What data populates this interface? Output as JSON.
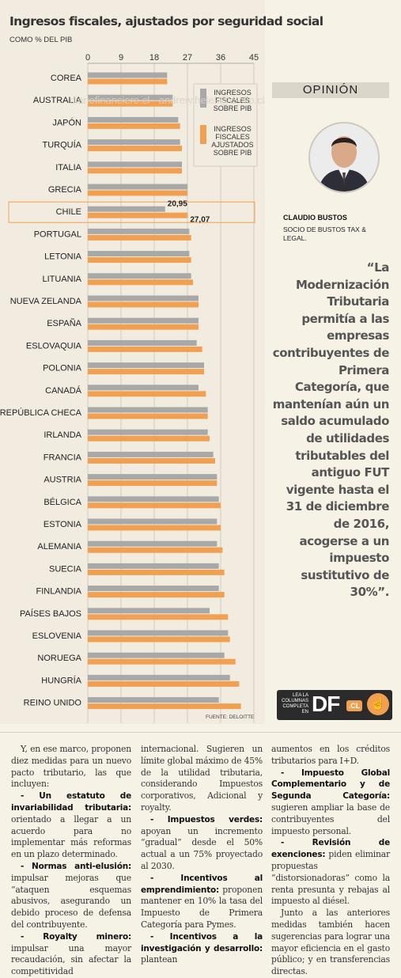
{
  "chart_data": {
    "type": "bar",
    "orientation": "horizontal",
    "title": "Ingresos fiscales, ajustados por seguridad social",
    "subtitle": "COMO % DEL PIB",
    "source": "FUENTE: DELOITTE",
    "xlim": [
      0,
      45
    ],
    "x_ticks": [
      "0",
      "9",
      "18",
      "27",
      "36",
      "45"
    ],
    "grid": true,
    "legend_position": "top-right",
    "categories": [
      "COREA",
      "AUSTRALIA",
      "JAPÓN",
      "TURQUÍA",
      "ITALIA",
      "GRECIA",
      "CHILE",
      "PORTUGAL",
      "LETONIA",
      "LITUANIA",
      "NUEVA ZELANDA",
      "ESPAÑA",
      "ESLOVAQUIA",
      "POLONIA",
      "CANADÁ",
      "REPÚBLICA CHECA",
      "IRLANDA",
      "FRANCIA",
      "AUSTRIA",
      "BÉLGICA",
      "ESTONIA",
      "ALEMANIA",
      "SUECIA",
      "FINLANDIA",
      "PAÍSES BAJOS",
      "ESLOVENIA",
      "NORUEGA",
      "HUNGRÍA",
      "REINO UNIDO"
    ],
    "highlight_category": "CHILE",
    "series": [
      {
        "name": "INGRESOS FISCALES SOBRE PIB",
        "color": "#a8a8a8",
        "values": [
          21.5,
          23,
          24.5,
          25,
          25.5,
          27,
          20.95,
          27.5,
          27.5,
          28,
          30,
          30,
          29.5,
          31.5,
          30,
          32.5,
          32.5,
          34,
          35,
          35.5,
          35,
          35,
          35.5,
          35.5,
          33,
          38,
          37,
          38.5,
          35.5
        ]
      },
      {
        "name": "INGRESOS FISCALES AJUSTADOS SOBRE PIB",
        "color": "#f0a050",
        "values": [
          21.5,
          23,
          25,
          25.5,
          25.5,
          27,
          27.07,
          28,
          28,
          28.5,
          30,
          30,
          31,
          31.5,
          32,
          32.5,
          33,
          34.5,
          35,
          36,
          36,
          36.5,
          37,
          37,
          38,
          38.5,
          40,
          41,
          41.5
        ]
      }
    ],
    "data_labels": [
      {
        "category": "CHILE",
        "series": 0,
        "text": "20,95"
      },
      {
        "category": "CHILE",
        "series": 1,
        "text": "27,07"
      }
    ]
  },
  "watermark": "diariofinanciero.cl - andrew.helek@e-clip.cl",
  "opinion": {
    "header": "OPINIÓN",
    "author_name": "CLAUDIO BUSTOS",
    "author_role": "SOCIO DE BUSTOS TAX & LEGAL.",
    "quote": "“La Modernización Tributaria permitía a las empresas contribuyentes de Primera Categoría, que mantenían aún un saldo acumulado de utilidades tributables del antiguo FUT vigente hasta el 31 de diciembre de 2016, acogerse a un impuesto sustitutivo de 30%”.",
    "badge_small": "LEA LA COLUMNAS COMPLETA EN",
    "badge_logo": "DF",
    "badge_cl": ".CL",
    "badge_icon": "hand-pointer-icon"
  },
  "article": {
    "col1": {
      "p1": "Y, en ese marco, proponen diez medidas para un nuevo pacto tributario, las que incluyen:",
      "b2": "- Un estatuto de invariabilidad tributaria:",
      "t2": " orientado a llegar a un acuerdo para no implementar más reformas en un plazo determinado.",
      "b3": "- Normas anti-elusión:",
      "t3": " impulsar mejoras que “ataquen esquemas abusivos, asegurando un debido proceso de defensa del contribuyente.",
      "b4": "- Royalty minero:",
      "t4": " impulsar una mayor recaudación, sin afectar la competitividad"
    },
    "col2": {
      "t1": "internacional. Sugieren un límite global máximo de 45% de la utilidad tributaria, considerando Impuestos corporativos, Adicional y royalty.",
      "b2": "- Impuestos verdes:",
      "t2": " apoyan un incremento “gradual” desde el 50% actual a un 75% proyectado al 2030.",
      "b3": "- Incentivos al emprendimiento:",
      "t3": " proponen mantener en 10% la tasa del Impuesto de Primera Categoría para Pymes.",
      "b4": "- Incentivos a la investigación y desarrollo:",
      "t4": " plantean"
    },
    "col3": {
      "t1": "aumentos en los créditos tributarios para I+D.",
      "b2": "- Impuesto Global Complementario y de Segunda Categoría:",
      "t2": " sugieren ampliar la base de contribuyentes del impuesto personal.",
      "b3": "- Revisión de exenciones:",
      "t3": " piden eliminar propuestas “distorsionadoras” como la renta presunta y rebajas al impuesto al diésel.",
      "t4": "Junto a las anteriores medidas también hacen sugerencias para lograr una mayor eficiencia en el gasto público; y en transferencias directas."
    }
  }
}
